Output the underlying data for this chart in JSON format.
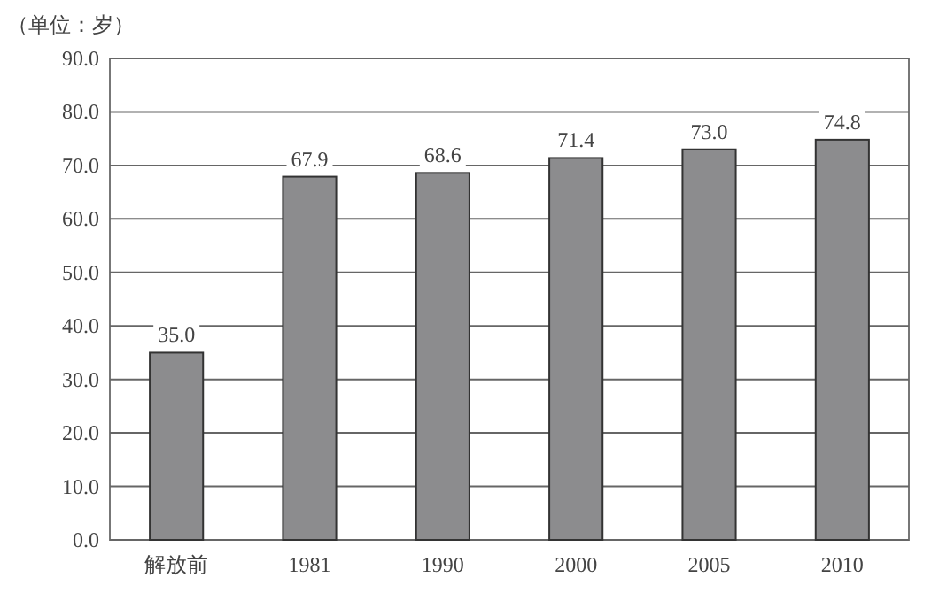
{
  "chart_data": {
    "type": "bar",
    "ylabel": "（单位：岁）",
    "categories": [
      "解放前",
      "1981",
      "1990",
      "2000",
      "2005",
      "2010"
    ],
    "series": [
      {
        "color": "#8c8c8e",
        "values": [
          35.0,
          67.9,
          68.6,
          71.4,
          73.0,
          74.8
        ],
        "value_labels": [
          "35.0",
          "67.9",
          "68.6",
          "71.4",
          "73.0",
          "74.8"
        ]
      }
    ],
    "ylim": [
      0,
      90
    ],
    "yticks": [
      {
        "value": 0,
        "label": "0.0"
      },
      {
        "value": 10,
        "label": "10.0"
      },
      {
        "value": 20,
        "label": "20.0"
      },
      {
        "value": 30,
        "label": "30.0"
      },
      {
        "value": 40,
        "label": "40.0"
      },
      {
        "value": 50,
        "label": "50.0"
      },
      {
        "value": 60,
        "label": "60.0"
      },
      {
        "value": 70,
        "label": "70.0"
      },
      {
        "value": 80,
        "label": "80.0"
      },
      {
        "value": 90,
        "label": "90.0"
      }
    ],
    "grid": "y"
  }
}
